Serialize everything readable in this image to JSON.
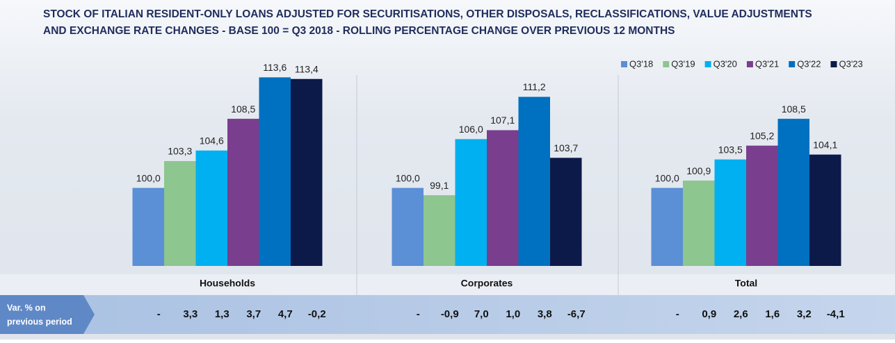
{
  "chart_data": {
    "type": "bar",
    "title": [
      "STOCK OF ITALIAN RESIDENT-ONLY LOANS ADJUSTED FOR SECURITISATIONS, OTHER DISPOSALS, RECLASSIFICATIONS, VALUE ADJUSTMENTS",
      "AND EXCHANGE RATE CHANGES - BASE 100 = Q3 2018 -  ROLLING PERCENTAGE CHANGE OVER PREVIOUS 12 MONTHS"
    ],
    "categories": [
      "Households",
      "Corporates",
      "Total"
    ],
    "ylim": [
      90.4,
      115
    ],
    "legend": "top-right",
    "series": [
      {
        "name": "Q3'18",
        "color": "#5b8fd6",
        "values": [
          100.0,
          100.0,
          100.0
        ],
        "value_labels": [
          "100,0",
          "100,0",
          "100,0"
        ]
      },
      {
        "name": "Q3'19",
        "color": "#8dc68f",
        "values": [
          103.3,
          99.1,
          100.9
        ],
        "value_labels": [
          "103,3",
          "99,1",
          "100,9"
        ]
      },
      {
        "name": "Q3'20",
        "color": "#00b0f0",
        "values": [
          104.6,
          106.0,
          103.5
        ],
        "value_labels": [
          "104,6",
          "106,0",
          "103,5"
        ]
      },
      {
        "name": "Q3'21",
        "color": "#7a3e8e",
        "values": [
          108.5,
          107.1,
          105.2
        ],
        "value_labels": [
          "108,5",
          "107,1",
          "105,2"
        ]
      },
      {
        "name": "Q3'22",
        "color": "#0070c0",
        "values": [
          113.6,
          111.2,
          108.5
        ],
        "value_labels": [
          "113,6",
          "111,2",
          "108,5"
        ]
      },
      {
        "name": "Q3'23",
        "color": "#0c1a4a",
        "values": [
          113.4,
          103.7,
          104.1
        ],
        "value_labels": [
          "113,4",
          "103,7",
          "104,1"
        ]
      }
    ],
    "variation": {
      "label": [
        "Var. % on",
        "previous period"
      ],
      "values": [
        [
          null,
          3.3,
          1.3,
          3.7,
          4.7,
          -0.2
        ],
        [
          null,
          -0.9,
          7.0,
          1.0,
          3.8,
          -6.7
        ],
        [
          null,
          0.9,
          2.6,
          1.6,
          3.2,
          -4.1
        ]
      ],
      "value_labels": [
        [
          "-",
          "3,3",
          "1,3",
          "3,7",
          "4,7",
          "-0,2"
        ],
        [
          "-",
          "-0,9",
          "7,0",
          "1,0",
          "3,8",
          "-6,7"
        ],
        [
          "-",
          "0,9",
          "2,6",
          "1,6",
          "3,2",
          "-4,1"
        ]
      ]
    }
  }
}
